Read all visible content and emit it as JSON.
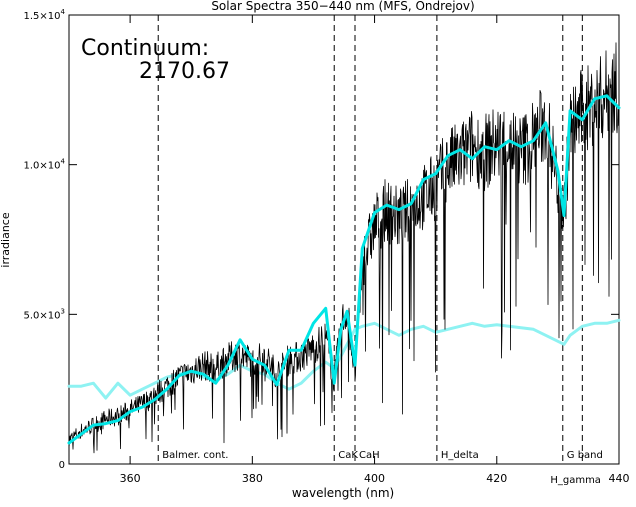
{
  "chart_data": {
    "type": "line",
    "title": "Solar Spectra 350−440 nm (MFS, Ondrejov)",
    "xlabel": "wavelength (nm)",
    "ylabel": "irradiance",
    "xlim": [
      350,
      440
    ],
    "ylim": [
      0,
      15000
    ],
    "x_ticks": [
      360,
      380,
      400,
      420,
      440
    ],
    "y_ticks": [
      {
        "value": 0,
        "mantissa": "0",
        "exponent": ""
      },
      {
        "value": 5000,
        "mantissa": "5.0×10",
        "exponent": "3"
      },
      {
        "value": 10000,
        "mantissa": "1.0×10",
        "exponent": "4"
      },
      {
        "value": 15000,
        "mantissa": "1.5×10",
        "exponent": "4"
      }
    ],
    "grid": false,
    "annotation": {
      "label": "Continuum:",
      "value": "2170.67"
    },
    "markers": [
      {
        "x": 364.6,
        "label": "Balmer. cont."
      },
      {
        "x": 393.4,
        "label": "CaK"
      },
      {
        "x": 396.8,
        "label": "CaH"
      },
      {
        "x": 410.2,
        "label": "H_delta"
      },
      {
        "x": 430.8,
        "label": "G band"
      },
      {
        "x": 434.0,
        "label": "H_gamma"
      }
    ],
    "series": [
      {
        "color": "#000000",
        "style": "noisy",
        "x": [
          350,
          352,
          354,
          356,
          358,
          360,
          362,
          364,
          366,
          368,
          370,
          372,
          374,
          376,
          378,
          380,
          382,
          384,
          386,
          388,
          390,
          392,
          393.4,
          394.5,
          395.5,
          396.8,
          398,
          400,
          402,
          404,
          406,
          408,
          410,
          412,
          414,
          416,
          418,
          420,
          422,
          424,
          426,
          428,
          430,
          431,
          432,
          434,
          436,
          438,
          440
        ],
        "values": [
          800,
          1100,
          1300,
          1500,
          1600,
          1800,
          2000,
          2300,
          2600,
          2900,
          3100,
          3300,
          3200,
          3500,
          3700,
          3400,
          3600,
          3000,
          3500,
          3600,
          3900,
          4200,
          2800,
          4600,
          5200,
          3000,
          6700,
          8000,
          8500,
          8200,
          8600,
          8900,
          9300,
          10000,
          10200,
          10600,
          10400,
          10700,
          10800,
          10400,
          10900,
          11400,
          9400,
          8400,
          11200,
          11800,
          12000,
          12400,
          12600
        ]
      },
      {
        "color": "#00e5e5",
        "style": "thick",
        "x": [
          350,
          352,
          354,
          356,
          358,
          360,
          362,
          364,
          366,
          368,
          370,
          372,
          374,
          376,
          378,
          380,
          382,
          384,
          386,
          388,
          390,
          392,
          393.4,
          394.5,
          395.5,
          396.8,
          398,
          400,
          402,
          404,
          406,
          408,
          410,
          412,
          414,
          416,
          418,
          420,
          422,
          424,
          426,
          428,
          430,
          431,
          432,
          434,
          436,
          438,
          440
        ],
        "values": [
          700,
          1000,
          1300,
          1350,
          1450,
          1750,
          1900,
          2150,
          2500,
          2950,
          3100,
          3000,
          2700,
          3300,
          4150,
          3500,
          3300,
          2650,
          3800,
          3800,
          4700,
          5200,
          2700,
          4500,
          5100,
          3300,
          7200,
          8400,
          8650,
          8500,
          8700,
          9500,
          9700,
          10300,
          10500,
          10200,
          10600,
          10500,
          10800,
          10600,
          10800,
          11400,
          9800,
          8300,
          11800,
          11500,
          12200,
          12300,
          11900
        ]
      },
      {
        "color": "#8ef2f2",
        "style": "smooth",
        "x": [
          350,
          352,
          354,
          356,
          358,
          360,
          362,
          364,
          366,
          368,
          370,
          372,
          374,
          376,
          378,
          380,
          382,
          384,
          386,
          388,
          390,
          392,
          393.4,
          394.5,
          395.5,
          396.8,
          398,
          400,
          402,
          404,
          406,
          408,
          410,
          412,
          414,
          416,
          418,
          420,
          422,
          424,
          426,
          428,
          430,
          431,
          432,
          434,
          436,
          438,
          440
        ],
        "values": [
          2600,
          2600,
          2700,
          2200,
          2700,
          2300,
          2500,
          2700,
          2900,
          3000,
          3100,
          2900,
          2800,
          3000,
          3300,
          3100,
          3000,
          2700,
          2500,
          2700,
          3100,
          3400,
          3200,
          3600,
          4000,
          4500,
          4600,
          4700,
          4500,
          4300,
          4500,
          4600,
          4400,
          4500,
          4600,
          4700,
          4600,
          4650,
          4600,
          4550,
          4500,
          4300,
          4100,
          4000,
          4300,
          4600,
          4700,
          4700,
          4800
        ]
      }
    ]
  }
}
